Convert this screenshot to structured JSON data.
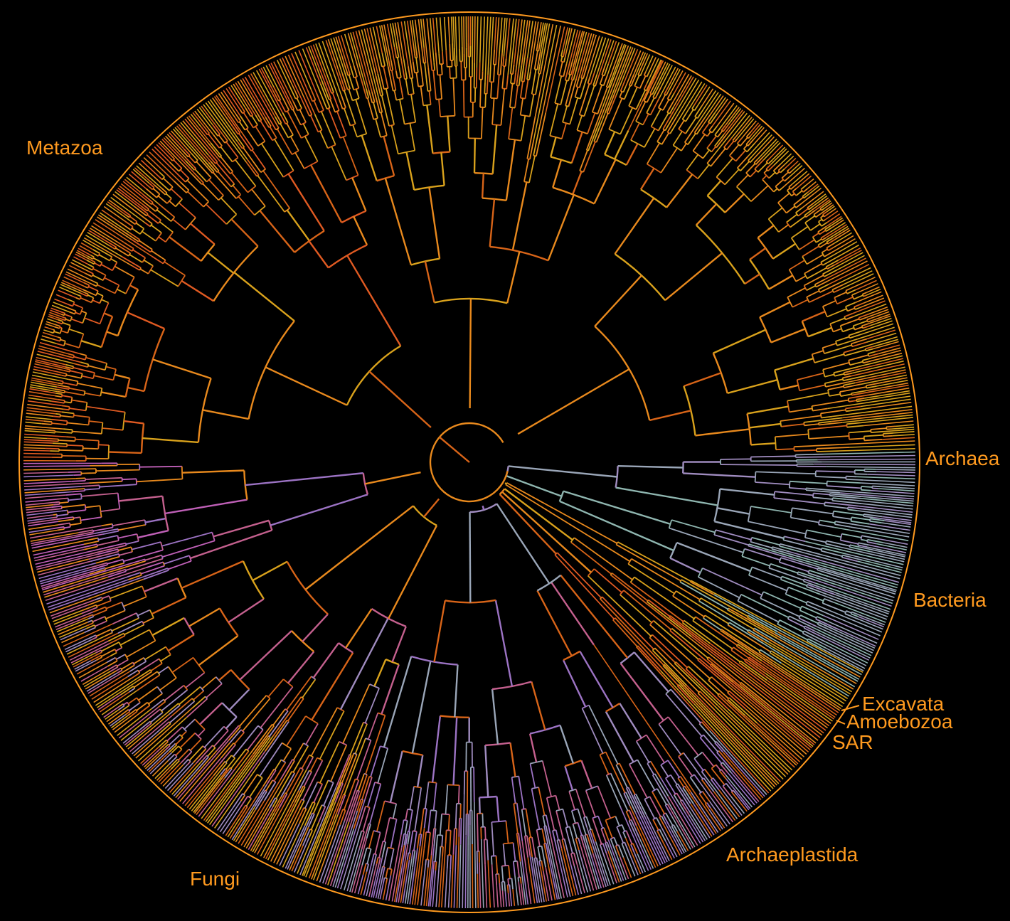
{
  "figure": {
    "type": "circular-phylogenetic-tree",
    "background": "#000000",
    "ring_color": "#ff9a1f",
    "label_color": "#ff9a1f",
    "palette": {
      "orange": "#e8891d",
      "gold": "#d9a21c",
      "dark_orange": "#d86418",
      "red_orange": "#e05a22",
      "pink": "#c4608e",
      "magenta": "#c060b8",
      "purple": "#9c73c4",
      "lavender": "#a08cc0",
      "grey_blue": "#9aa6b8",
      "teal_grey": "#8fb6b0"
    }
  },
  "clades": [
    {
      "id": "metazoa",
      "label": "Metazoa"
    },
    {
      "id": "archaea",
      "label": "Archaea"
    },
    {
      "id": "bacteria",
      "label": "Bacteria"
    },
    {
      "id": "excavata",
      "label": "Excavata"
    },
    {
      "id": "amoebozoa",
      "label": "Amoebozoa"
    },
    {
      "id": "sar",
      "label": "SAR"
    },
    {
      "id": "archaeplastida",
      "label": "Archaeplastida"
    },
    {
      "id": "fungi",
      "label": "Fungi"
    }
  ]
}
